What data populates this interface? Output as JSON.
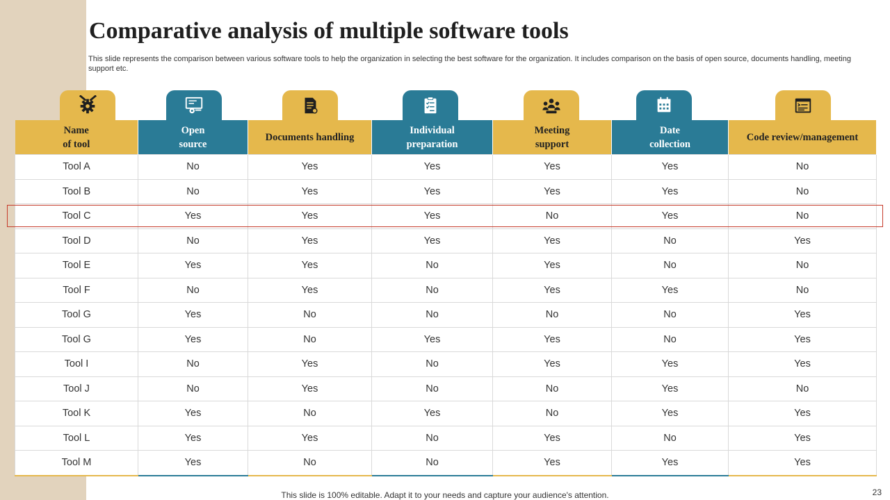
{
  "slide": {
    "title": "Comparative analysis of multiple software tools",
    "subtitle": "This slide represents the comparison between various software tools to help the organization in selecting the best software for the organization. It includes comparison on the basis of open source, documents handling, meeting support etc.",
    "footer": "This slide is 100% editable. Adapt it to your needs and capture your audience's attention.",
    "page_number": "23"
  },
  "colors": {
    "gold": "#e5b84c",
    "teal": "#2a7b96",
    "side_strip": "#e2d3bd",
    "highlight_border": "#c63b2b"
  },
  "table": {
    "columns": [
      {
        "line1": "Name",
        "line2": "of tool",
        "icon": "gear-tools-icon",
        "color": "gold"
      },
      {
        "line1": "Open",
        "line2": "source",
        "icon": "monitor-settings-icon",
        "color": "teal"
      },
      {
        "line1": "Documents handling",
        "line2": "",
        "icon": "document-icon",
        "color": "gold"
      },
      {
        "line1": "Individual",
        "line2": "preparation",
        "icon": "clipboard-checklist-icon",
        "color": "teal"
      },
      {
        "line1": "Meeting",
        "line2": "support",
        "icon": "meeting-group-icon",
        "color": "gold"
      },
      {
        "line1": "Date",
        "line2": "collection",
        "icon": "calendar-icon",
        "color": "teal"
      },
      {
        "line1": "Code review/management",
        "line2": "",
        "icon": "code-window-icon",
        "color": "gold"
      }
    ],
    "highlighted_row": "Tool C",
    "rows": [
      [
        "Tool A",
        "No",
        "Yes",
        "Yes",
        "Yes",
        "Yes",
        "No"
      ],
      [
        "Tool B",
        "No",
        "Yes",
        "Yes",
        "Yes",
        "Yes",
        "No"
      ],
      [
        "Tool C",
        "Yes",
        "Yes",
        "Yes",
        "No",
        "Yes",
        "No"
      ],
      [
        "Tool D",
        "No",
        "Yes",
        "Yes",
        "Yes",
        "No",
        "Yes"
      ],
      [
        "Tool E",
        "Yes",
        "Yes",
        "No",
        "Yes",
        "No",
        "No"
      ],
      [
        "Tool F",
        "No",
        "Yes",
        "No",
        "Yes",
        "Yes",
        "No"
      ],
      [
        "Tool G",
        "Yes",
        "No",
        "No",
        "No",
        "No",
        "Yes"
      ],
      [
        "Tool G",
        "Yes",
        "No",
        "Yes",
        "Yes",
        "No",
        "Yes"
      ],
      [
        "Tool I",
        "No",
        "Yes",
        "No",
        "Yes",
        "Yes",
        "Yes"
      ],
      [
        "Tool J",
        "No",
        "Yes",
        "No",
        "No",
        "Yes",
        "No"
      ],
      [
        "Tool K",
        "Yes",
        "No",
        "Yes",
        "No",
        "Yes",
        "Yes"
      ],
      [
        "Tool L",
        "Yes",
        "Yes",
        "No",
        "Yes",
        "No",
        "Yes"
      ],
      [
        "Tool M",
        "Yes",
        "No",
        "No",
        "Yes",
        "Yes",
        "Yes"
      ]
    ]
  }
}
